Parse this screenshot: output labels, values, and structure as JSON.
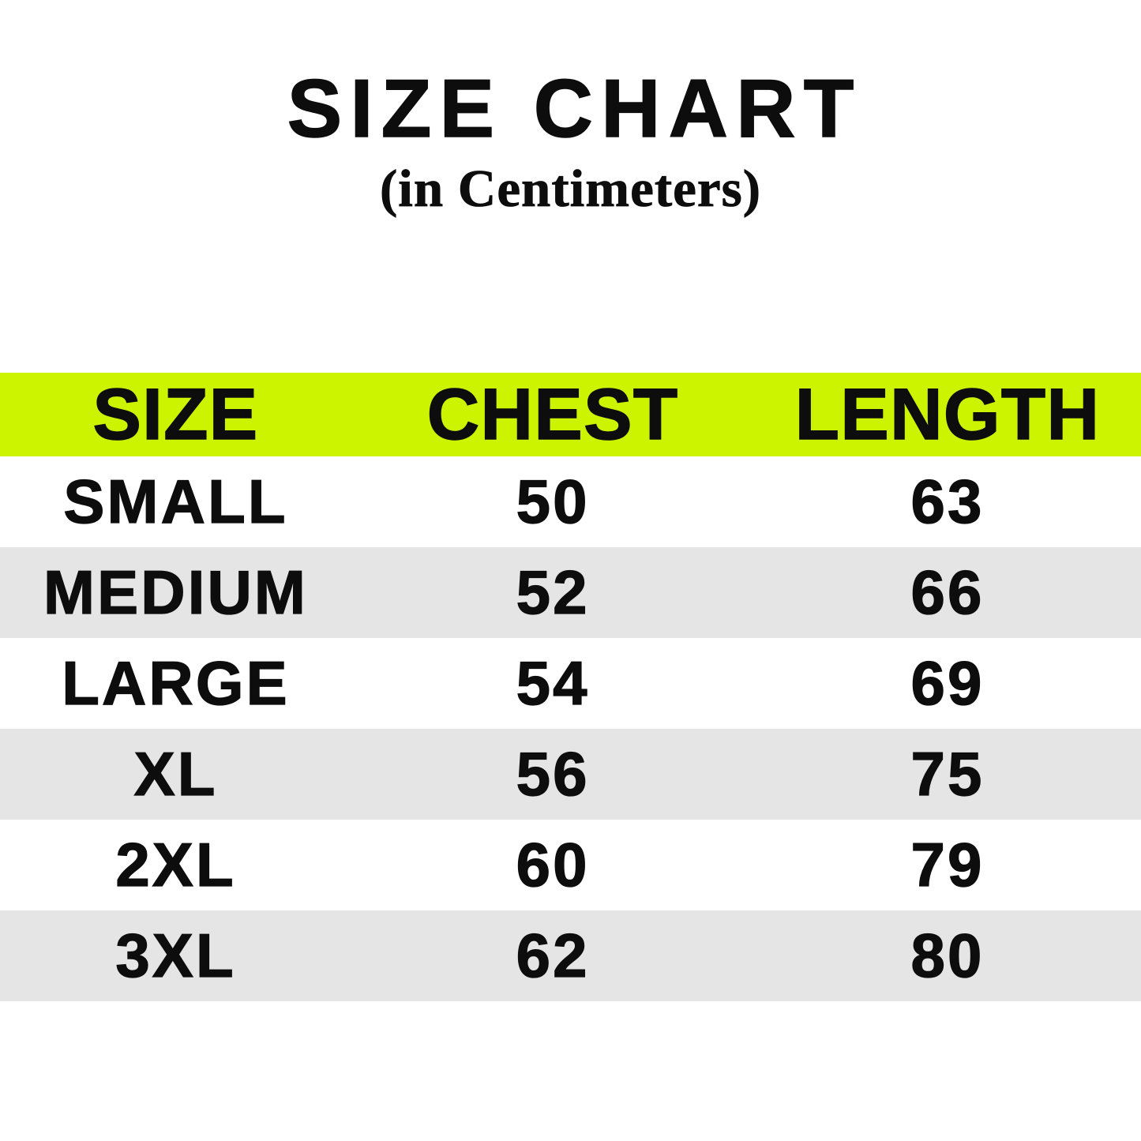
{
  "page": {
    "title": "SIZE CHART",
    "subtitle": "(in Centimeters)"
  },
  "colors": {
    "page_bg": "#ffffff",
    "header_band": "#ccf400",
    "stripe_row": "#e5e5e5",
    "text": "#0d0d0d"
  },
  "chart_data": {
    "type": "table",
    "title": "SIZE CHART",
    "subtitle": "(in Centimeters)",
    "units": "cm",
    "columns": [
      "SIZE",
      "CHEST",
      "LENGTH"
    ],
    "rows": [
      [
        "SMALL",
        "50",
        "63"
      ],
      [
        "MEDIUM",
        "52",
        "66"
      ],
      [
        "LARGE",
        "54",
        "69"
      ],
      [
        "XL",
        "56",
        "75"
      ],
      [
        "2XL",
        "60",
        "79"
      ],
      [
        "3XL",
        "62",
        "80"
      ]
    ],
    "layout": {
      "header_row_background": "#ccf400",
      "alternating_row_background": "#e5e5e5",
      "row_order_backgrounds": [
        "white",
        "gray",
        "white",
        "gray",
        "white",
        "gray"
      ]
    }
  }
}
